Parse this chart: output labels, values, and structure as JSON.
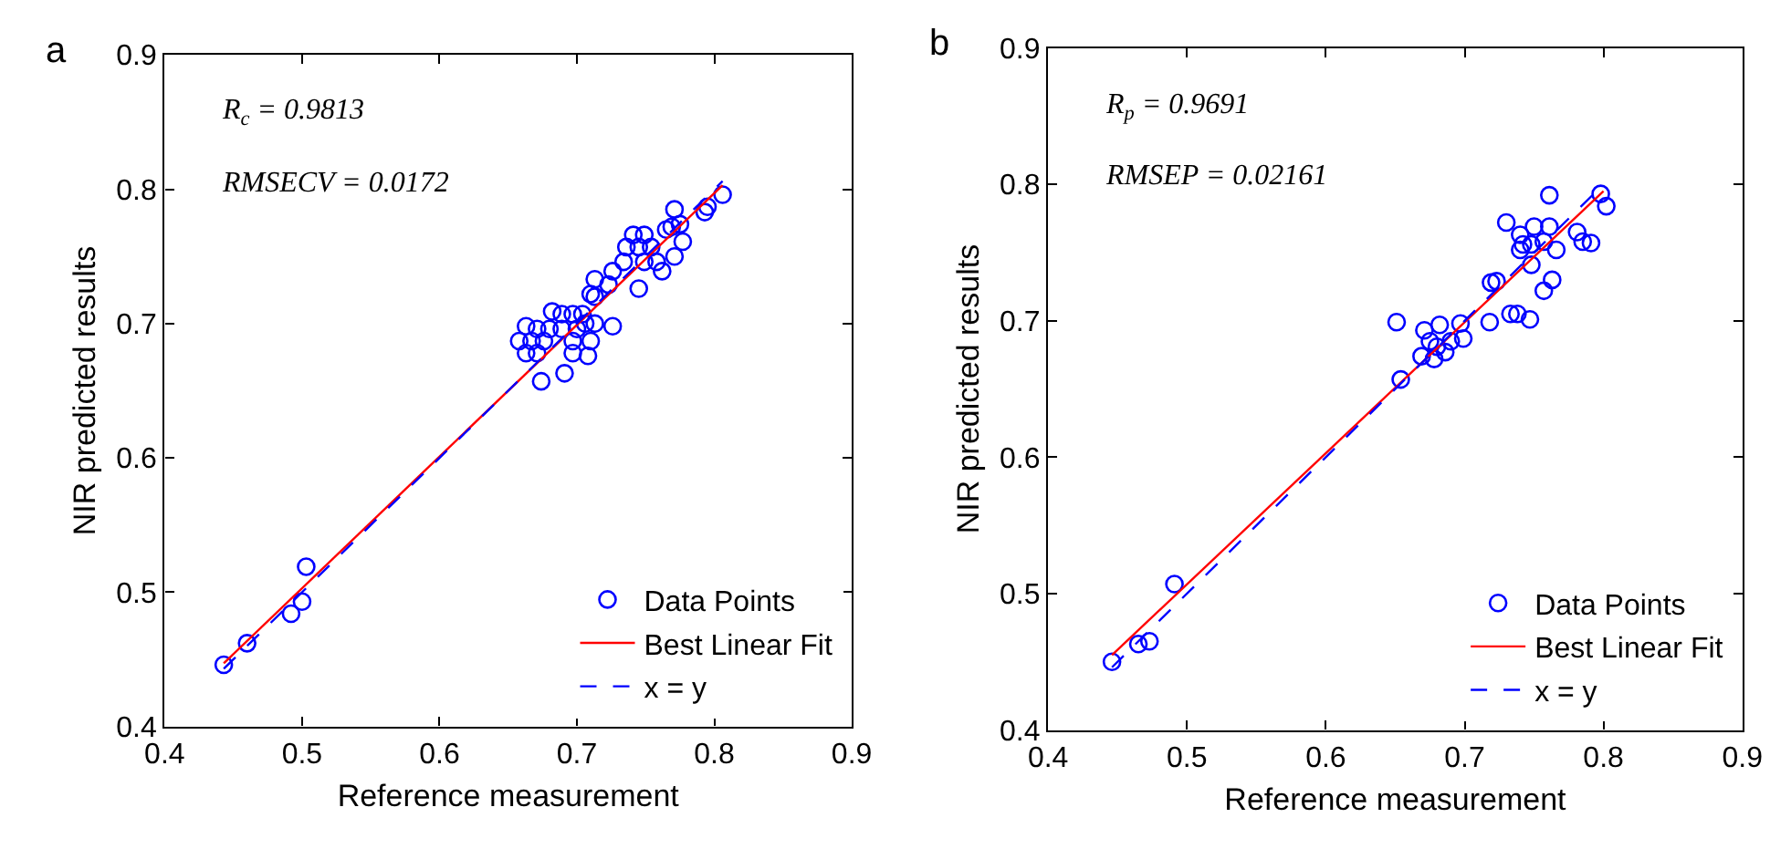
{
  "chart_data": [
    {
      "type": "scatter",
      "title": "a",
      "xlabel": "Reference measurement",
      "ylabel": "NIR predicted results",
      "annotations": [
        "R$_{c}$ = 0.9813",
        "RMSECV = 0.0172"
      ],
      "xlim": [
        0.4,
        0.9
      ],
      "ylim": [
        0.4,
        0.9
      ],
      "xticks": [
        0.4,
        0.5,
        0.6,
        0.7,
        0.8,
        0.9
      ],
      "yticks": [
        0.4,
        0.5,
        0.6,
        0.7,
        0.8,
        0.9
      ],
      "legend": "bottom right",
      "series": [
        {
          "name": "Data Points",
          "marker": "circle",
          "color": "#0000ff",
          "x": [
            0.443,
            0.46,
            0.503,
            0.5,
            0.492,
            0.806,
            0.795,
            0.793,
            0.771,
            0.769,
            0.775,
            0.765,
            0.777,
            0.771,
            0.741,
            0.749,
            0.745,
            0.754,
            0.736,
            0.758,
            0.749,
            0.762,
            0.734,
            0.726,
            0.745,
            0.713,
            0.723,
            0.71,
            0.713,
            0.704,
            0.697,
            0.689,
            0.682,
            0.706,
            0.713,
            0.726,
            0.7,
            0.689,
            0.68,
            0.671,
            0.663,
            0.658,
            0.667,
            0.676,
            0.697,
            0.71,
            0.663,
            0.671,
            0.708,
            0.697,
            0.674,
            0.691
          ],
          "values": [
            0.446,
            0.462,
            0.519,
            0.493,
            0.484,
            0.796,
            0.787,
            0.783,
            0.785,
            0.772,
            0.774,
            0.77,
            0.761,
            0.75,
            0.766,
            0.766,
            0.757,
            0.757,
            0.757,
            0.746,
            0.746,
            0.739,
            0.746,
            0.739,
            0.726,
            0.733,
            0.729,
            0.722,
            0.72,
            0.707,
            0.707,
            0.707,
            0.709,
            0.7,
            0.7,
            0.698,
            0.696,
            0.696,
            0.696,
            0.696,
            0.698,
            0.687,
            0.687,
            0.687,
            0.687,
            0.687,
            0.678,
            0.678,
            0.676,
            0.678,
            0.657,
            0.663
          ]
        },
        {
          "name": "Best Linear Fit",
          "type": "line",
          "color": "#ff0000",
          "line_style": "solid",
          "x": [
            0.443,
            0.806
          ],
          "values": [
            0.447,
            0.803
          ]
        },
        {
          "name": "x = y",
          "type": "line",
          "color": "#0000ff",
          "line_style": "dashed",
          "x": [
            0.443,
            0.806
          ],
          "values": [
            0.443,
            0.806
          ]
        }
      ]
    },
    {
      "type": "scatter",
      "title": "b",
      "xlabel": "Reference measurement",
      "ylabel": "NIR predicted results",
      "annotations": [
        "R$_{p}$ = 0.9691",
        "RMSEP = 0.02161"
      ],
      "xlim": [
        0.4,
        0.9
      ],
      "ylim": [
        0.4,
        0.9
      ],
      "xticks": [
        0.4,
        0.5,
        0.6,
        0.7,
        0.8,
        0.9
      ],
      "yticks": [
        0.4,
        0.5,
        0.6,
        0.7,
        0.8,
        0.9
      ],
      "legend": "bottom right",
      "series": [
        {
          "name": "Data Points",
          "marker": "circle",
          "color": "#0000ff",
          "x": [
            0.446,
            0.465,
            0.473,
            0.491,
            0.798,
            0.802,
            0.761,
            0.73,
            0.74,
            0.75,
            0.761,
            0.742,
            0.748,
            0.74,
            0.757,
            0.781,
            0.785,
            0.791,
            0.766,
            0.748,
            0.719,
            0.723,
            0.763,
            0.757,
            0.651,
            0.718,
            0.733,
            0.738,
            0.747,
            0.671,
            0.682,
            0.697,
            0.675,
            0.69,
            0.699,
            0.669,
            0.678,
            0.686,
            0.654,
            0.68
          ],
          "values": [
            0.45,
            0.463,
            0.465,
            0.507,
            0.793,
            0.784,
            0.792,
            0.772,
            0.763,
            0.769,
            0.769,
            0.756,
            0.756,
            0.752,
            0.758,
            0.765,
            0.758,
            0.757,
            0.752,
            0.741,
            0.728,
            0.729,
            0.73,
            0.722,
            0.699,
            0.699,
            0.705,
            0.705,
            0.701,
            0.693,
            0.697,
            0.698,
            0.685,
            0.685,
            0.687,
            0.674,
            0.672,
            0.677,
            0.657,
            0.681
          ]
        },
        {
          "name": "Best Linear Fit",
          "type": "line",
          "color": "#ff0000",
          "line_style": "solid",
          "x": [
            0.446,
            0.8
          ],
          "values": [
            0.455,
            0.795
          ]
        },
        {
          "name": "x = y",
          "type": "line",
          "color": "#0000ff",
          "line_style": "dashed",
          "x": [
            0.446,
            0.8
          ],
          "values": [
            0.446,
            0.8
          ]
        }
      ]
    }
  ]
}
